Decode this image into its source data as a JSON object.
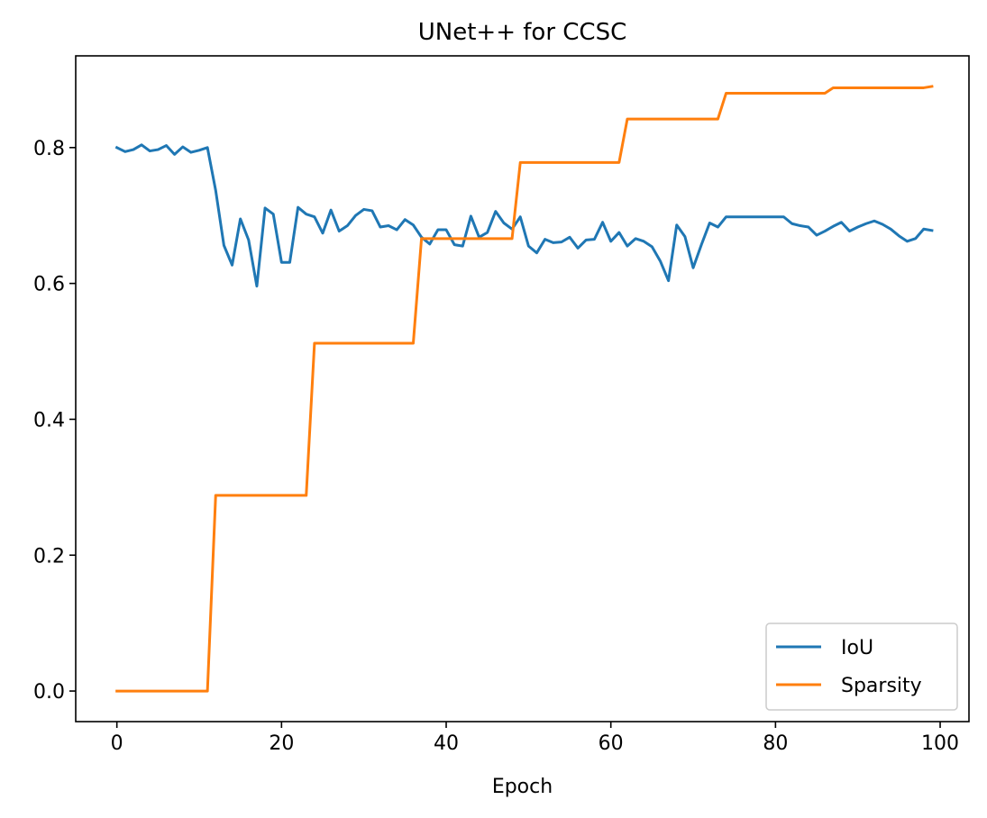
{
  "chart_data": {
    "type": "line",
    "title": "UNet++ for CCSC",
    "xlabel": "Epoch",
    "ylabel": "",
    "xlim": [
      -5,
      103.5
    ],
    "ylim": [
      -0.045,
      0.935
    ],
    "xticks": [
      0,
      20,
      40,
      60,
      80,
      100
    ],
    "yticks": [
      0.0,
      0.2,
      0.4,
      0.6,
      0.8
    ],
    "xtick_labels": [
      "0",
      "20",
      "40",
      "60",
      "80",
      "100"
    ],
    "ytick_labels": [
      "0.0",
      "0.2",
      "0.4",
      "0.6",
      "0.8"
    ],
    "legend_position": "lower-right",
    "grid": false,
    "x": [
      0,
      1,
      2,
      3,
      4,
      5,
      6,
      7,
      8,
      9,
      10,
      11,
      12,
      13,
      14,
      15,
      16,
      17,
      18,
      19,
      20,
      21,
      22,
      23,
      24,
      25,
      26,
      27,
      28,
      29,
      30,
      31,
      32,
      33,
      34,
      35,
      36,
      37,
      38,
      39,
      40,
      41,
      42,
      43,
      44,
      45,
      46,
      47,
      48,
      49,
      50,
      51,
      52,
      53,
      54,
      55,
      56,
      57,
      58,
      59,
      60,
      61,
      62,
      63,
      64,
      65,
      66,
      67,
      68,
      69,
      70,
      71,
      72,
      73,
      74,
      75,
      76,
      77,
      78,
      79,
      80,
      81,
      82,
      83,
      84,
      85,
      86,
      87,
      88,
      89,
      90,
      91,
      92,
      93,
      94,
      95,
      96,
      97,
      98,
      99
    ],
    "series": [
      {
        "name": "IoU",
        "color": "#1f77b4",
        "values": [
          0.8,
          0.794,
          0.797,
          0.804,
          0.795,
          0.797,
          0.803,
          0.79,
          0.801,
          0.793,
          0.796,
          0.8,
          0.737,
          0.656,
          0.627,
          0.695,
          0.664,
          0.596,
          0.711,
          0.702,
          0.631,
          0.631,
          0.712,
          0.702,
          0.698,
          0.674,
          0.708,
          0.677,
          0.685,
          0.7,
          0.709,
          0.707,
          0.683,
          0.685,
          0.679,
          0.694,
          0.686,
          0.668,
          0.658,
          0.679,
          0.679,
          0.657,
          0.655,
          0.699,
          0.668,
          0.675,
          0.706,
          0.689,
          0.68,
          0.698,
          0.655,
          0.645,
          0.665,
          0.66,
          0.661,
          0.668,
          0.652,
          0.664,
          0.665,
          0.69,
          0.662,
          0.675,
          0.655,
          0.666,
          0.662,
          0.654,
          0.633,
          0.604,
          0.686,
          0.669,
          0.623,
          0.657,
          0.689,
          0.683,
          0.698,
          0.698,
          0.698,
          0.698,
          0.698,
          0.698,
          0.698,
          0.698,
          0.688,
          0.685,
          0.683,
          0.671,
          0.677,
          0.684,
          0.69,
          0.677,
          0.683,
          0.688,
          0.692,
          0.687,
          0.68,
          0.67,
          0.662,
          0.666,
          0.68,
          0.678
        ]
      },
      {
        "name": "Sparsity",
        "color": "#ff7f0e",
        "values": [
          0.0,
          0.0,
          0.0,
          0.0,
          0.0,
          0.0,
          0.0,
          0.0,
          0.0,
          0.0,
          0.0,
          0.0,
          0.288,
          0.288,
          0.288,
          0.288,
          0.288,
          0.288,
          0.288,
          0.288,
          0.288,
          0.288,
          0.288,
          0.288,
          0.512,
          0.512,
          0.512,
          0.512,
          0.512,
          0.512,
          0.512,
          0.512,
          0.512,
          0.512,
          0.512,
          0.512,
          0.512,
          0.666,
          0.666,
          0.666,
          0.666,
          0.666,
          0.666,
          0.666,
          0.666,
          0.666,
          0.666,
          0.666,
          0.666,
          0.778,
          0.778,
          0.778,
          0.778,
          0.778,
          0.778,
          0.778,
          0.778,
          0.778,
          0.778,
          0.778,
          0.778,
          0.778,
          0.842,
          0.842,
          0.842,
          0.842,
          0.842,
          0.842,
          0.842,
          0.842,
          0.842,
          0.842,
          0.842,
          0.842,
          0.88,
          0.88,
          0.88,
          0.88,
          0.88,
          0.88,
          0.88,
          0.88,
          0.88,
          0.88,
          0.88,
          0.88,
          0.88,
          0.888,
          0.888,
          0.888,
          0.888,
          0.888,
          0.888,
          0.888,
          0.888,
          0.888,
          0.888,
          0.888,
          0.888,
          0.89
        ]
      }
    ]
  }
}
